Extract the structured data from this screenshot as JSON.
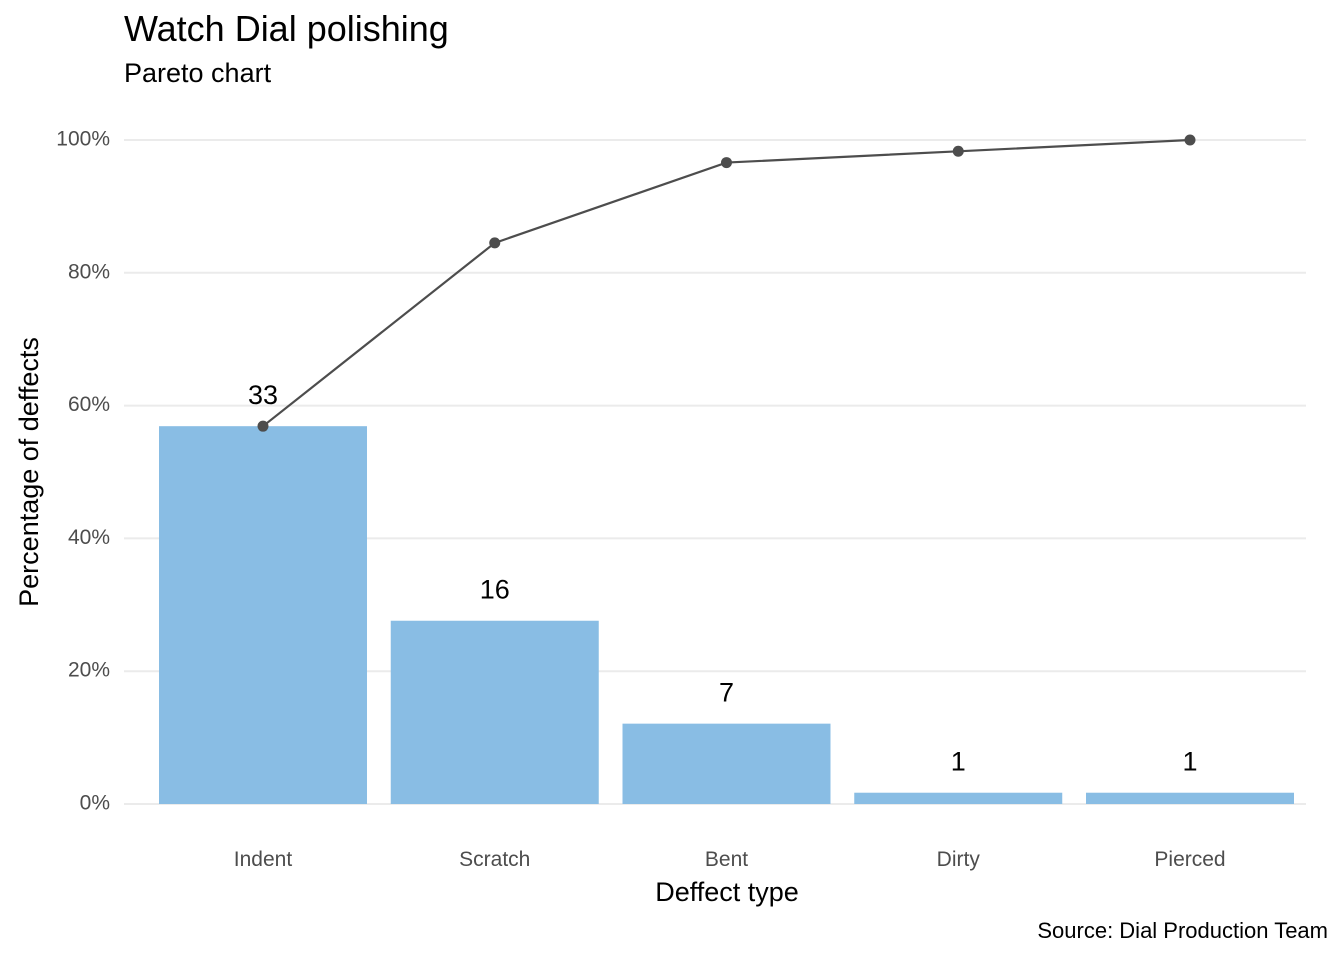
{
  "chart_data": {
    "type": "bar",
    "title": "Watch Dial polishing",
    "subtitle": "Pareto chart",
    "caption": "Source: Dial Production Team",
    "xlabel": "Deffect type",
    "ylabel": "Percentage of deffects",
    "categories": [
      "Indent",
      "Scratch",
      "Bent",
      "Dirty",
      "Pierced"
    ],
    "series": [
      {
        "name": "",
        "type": "bar",
        "counts": [
          33,
          16,
          7,
          1,
          1
        ],
        "values": [
          56.9,
          27.6,
          12.1,
          1.7,
          1.7
        ]
      },
      {
        "name": "",
        "type": "line",
        "values": [
          56.9,
          84.5,
          96.6,
          98.3,
          100.0
        ]
      }
    ],
    "ylim": [
      0,
      100
    ],
    "yticks": [
      "0%",
      "20%",
      "40%",
      "60%",
      "80%",
      "100%"
    ],
    "ytick_values": [
      0,
      20,
      40,
      60,
      80,
      100
    ],
    "grid": true,
    "legend": "none",
    "colors": {
      "bar": "#89bde4",
      "line": "#4d4d4d",
      "grid": "#ebebeb"
    }
  }
}
